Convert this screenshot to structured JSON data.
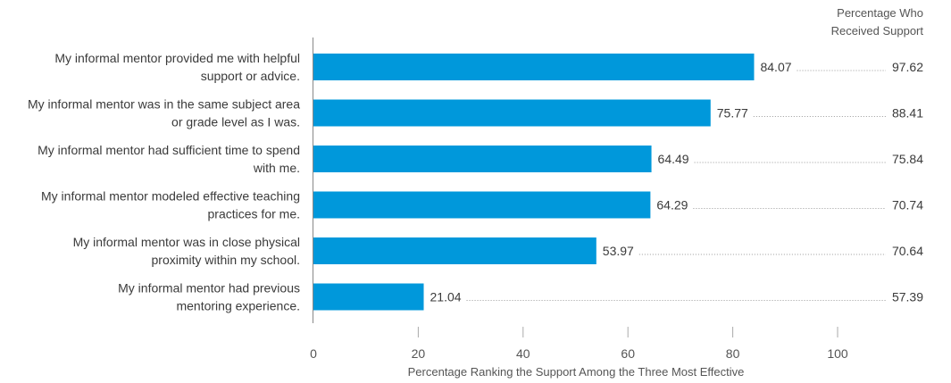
{
  "chart_data": {
    "type": "bar",
    "orientation": "horizontal",
    "categories": [
      [
        "My informal mentor provided me with helpful",
        "support or advice."
      ],
      [
        "My informal mentor was in the same subject area",
        "or grade level as I was."
      ],
      [
        "My informal mentor had sufficient time to spend",
        "with me."
      ],
      [
        "My informal mentor modeled effective teaching",
        "practices for me."
      ],
      [
        "My informal mentor was in close physical",
        "proximity within my school."
      ],
      [
        "My informal mentor had previous",
        "mentoring experience."
      ]
    ],
    "values": [
      84.07,
      75.77,
      64.49,
      64.29,
      53.97,
      21.04
    ],
    "value_labels": [
      "84.07",
      "75.77",
      "64.49",
      "64.29",
      "53.97",
      "21.04"
    ],
    "received_support": [
      97.62,
      88.41,
      75.84,
      70.74,
      70.64,
      57.39
    ],
    "received_support_labels": [
      "97.62",
      "88.41",
      "75.84",
      "70.74",
      "70.64",
      "57.39"
    ],
    "received_support_header": [
      "Percentage Who",
      "Received Support"
    ],
    "xlabel": "Percentage Ranking the Support Among the Three Most Effective",
    "xlim": [
      0,
      100
    ],
    "xticks": [
      "0",
      "20",
      "40",
      "60",
      "80",
      "100"
    ],
    "grid": false,
    "colors": {
      "bar": "#0098DB",
      "text": "#3a3a3a",
      "axis": "#888888",
      "dots": "#999999"
    }
  }
}
